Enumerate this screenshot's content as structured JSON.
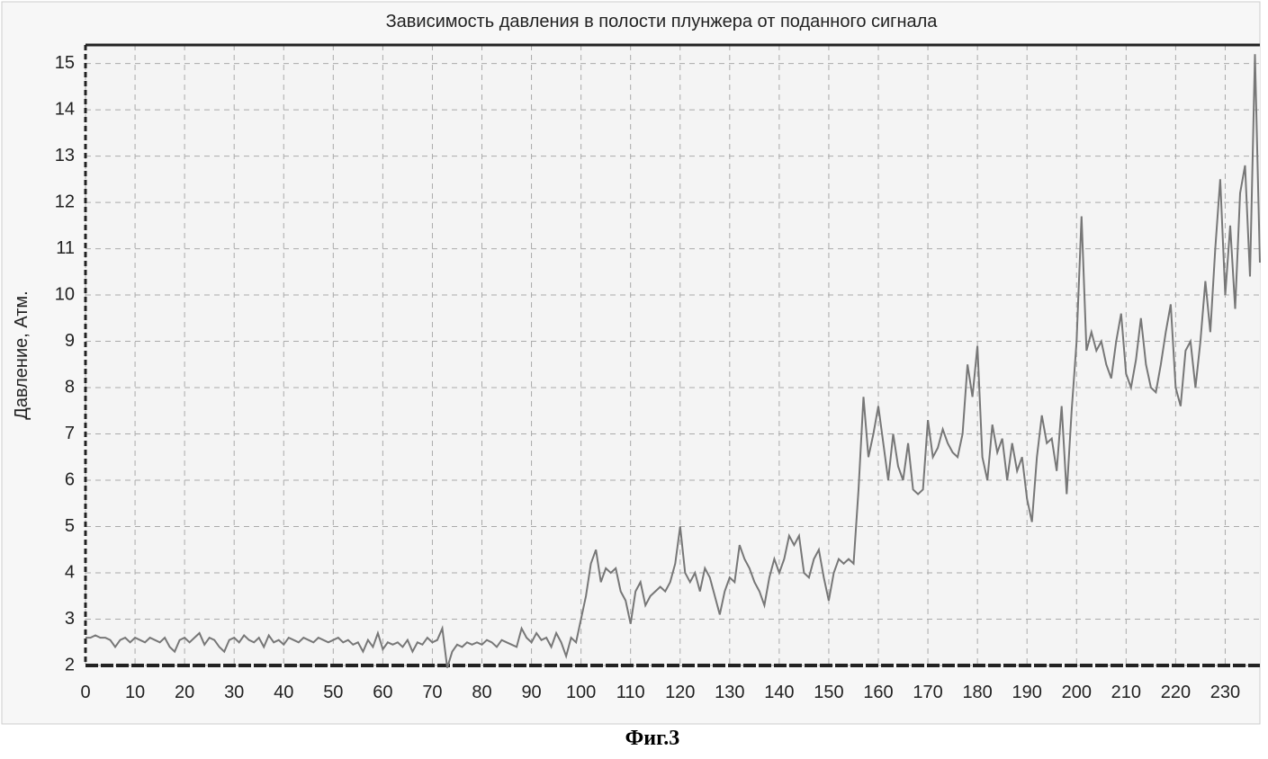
{
  "chart_data": {
    "type": "line",
    "title": "Зависимость давления в полости плунжера от поданного сигнала",
    "y_label": "Давление, Атм.",
    "caption": "Фиг.3",
    "x": [
      0,
      1,
      2,
      3,
      4,
      5,
      6,
      7,
      8,
      9,
      10,
      11,
      12,
      13,
      14,
      15,
      16,
      17,
      18,
      19,
      20,
      21,
      22,
      23,
      24,
      25,
      26,
      27,
      28,
      29,
      30,
      31,
      32,
      33,
      34,
      35,
      36,
      37,
      38,
      39,
      40,
      41,
      42,
      43,
      44,
      45,
      46,
      47,
      48,
      49,
      50,
      51,
      52,
      53,
      54,
      55,
      56,
      57,
      58,
      59,
      60,
      61,
      62,
      63,
      64,
      65,
      66,
      67,
      68,
      69,
      70,
      71,
      72,
      73,
      74,
      75,
      76,
      77,
      78,
      79,
      80,
      81,
      82,
      83,
      84,
      85,
      86,
      87,
      88,
      89,
      90,
      91,
      92,
      93,
      94,
      95,
      96,
      97,
      98,
      99,
      100,
      101,
      102,
      103,
      104,
      105,
      106,
      107,
      108,
      109,
      110,
      111,
      112,
      113,
      114,
      115,
      116,
      117,
      118,
      119,
      120,
      121,
      122,
      123,
      124,
      125,
      126,
      127,
      128,
      129,
      130,
      131,
      132,
      133,
      134,
      135,
      136,
      137,
      138,
      139,
      140,
      141,
      142,
      143,
      144,
      145,
      146,
      147,
      148,
      149,
      150,
      151,
      152,
      153,
      154,
      155,
      156,
      157,
      158,
      159,
      160,
      161,
      162,
      163,
      164,
      165,
      166,
      167,
      168,
      169,
      170,
      171,
      172,
      173,
      174,
      175,
      176,
      177,
      178,
      179,
      180,
      181,
      182,
      183,
      184,
      185,
      186,
      187,
      188,
      189,
      190,
      191,
      192,
      193,
      194,
      195,
      196,
      197,
      198,
      199,
      200,
      201,
      202,
      203,
      204,
      205,
      206,
      207,
      208,
      209,
      210,
      211,
      212,
      213,
      214,
      215,
      216,
      217,
      218,
      219,
      220,
      221,
      222,
      223,
      224,
      225,
      226,
      227,
      228,
      229,
      230,
      231,
      232,
      233,
      234,
      235,
      236,
      237
    ],
    "series": [
      {
        "color": "#777777",
        "values": [
          2.6,
          2.6,
          2.65,
          2.6,
          2.6,
          2.55,
          2.4,
          2.55,
          2.6,
          2.5,
          2.6,
          2.55,
          2.5,
          2.6,
          2.55,
          2.5,
          2.6,
          2.4,
          2.3,
          2.55,
          2.6,
          2.5,
          2.6,
          2.7,
          2.45,
          2.6,
          2.55,
          2.4,
          2.3,
          2.55,
          2.6,
          2.5,
          2.65,
          2.55,
          2.5,
          2.6,
          2.4,
          2.65,
          2.5,
          2.55,
          2.45,
          2.6,
          2.55,
          2.5,
          2.6,
          2.55,
          2.5,
          2.6,
          2.55,
          2.5,
          2.55,
          2.6,
          2.5,
          2.55,
          2.45,
          2.5,
          2.3,
          2.55,
          2.4,
          2.7,
          2.35,
          2.5,
          2.45,
          2.5,
          2.4,
          2.55,
          2.3,
          2.5,
          2.45,
          2.6,
          2.5,
          2.55,
          2.8,
          1.95,
          2.3,
          2.45,
          2.4,
          2.5,
          2.45,
          2.5,
          2.45,
          2.55,
          2.5,
          2.4,
          2.55,
          2.5,
          2.45,
          2.4,
          2.8,
          2.6,
          2.5,
          2.7,
          2.55,
          2.6,
          2.4,
          2.7,
          2.5,
          2.2,
          2.6,
          2.5,
          3.0,
          3.5,
          4.2,
          4.5,
          3.8,
          4.1,
          4.0,
          4.1,
          3.6,
          3.4,
          2.9,
          3.6,
          3.8,
          3.3,
          3.5,
          3.6,
          3.7,
          3.6,
          3.8,
          4.2,
          5.0,
          4.0,
          3.8,
          4.0,
          3.6,
          4.1,
          3.9,
          3.5,
          3.1,
          3.6,
          3.9,
          3.8,
          4.6,
          4.3,
          4.1,
          3.8,
          3.6,
          3.3,
          3.9,
          4.3,
          4.0,
          4.3,
          4.8,
          4.6,
          4.8,
          4.0,
          3.9,
          4.3,
          4.5,
          3.9,
          3.4,
          4.0,
          4.3,
          4.2,
          4.3,
          4.2,
          5.8,
          7.8,
          6.5,
          7.0,
          7.6,
          6.8,
          6.0,
          7.0,
          6.3,
          6.0,
          6.8,
          5.8,
          5.7,
          5.8,
          7.3,
          6.5,
          6.7,
          7.1,
          6.8,
          6.6,
          6.5,
          7.0,
          8.5,
          7.8,
          8.9,
          6.5,
          6.0,
          7.2,
          6.6,
          6.9,
          6.0,
          6.8,
          6.2,
          6.5,
          5.6,
          5.1,
          6.5,
          7.4,
          6.8,
          6.9,
          6.2,
          7.6,
          5.7,
          7.5,
          9.0,
          11.7,
          8.8,
          9.2,
          8.8,
          9.0,
          8.5,
          8.2,
          9.0,
          9.6,
          8.3,
          8.0,
          8.6,
          9.5,
          8.5,
          8.0,
          7.9,
          8.5,
          9.2,
          9.8,
          8.0,
          7.6,
          8.8,
          9.0,
          8.0,
          9.0,
          10.3,
          9.2,
          11.0,
          12.5,
          10.0,
          11.5,
          9.7,
          12.2,
          12.8,
          10.4,
          15.2,
          10.7
        ]
      }
    ],
    "xlim": [
      0,
      237
    ],
    "ylim": [
      2,
      15.4
    ],
    "xticks": [
      0,
      10,
      20,
      30,
      40,
      50,
      60,
      70,
      80,
      90,
      100,
      110,
      120,
      130,
      140,
      150,
      160,
      170,
      180,
      190,
      200,
      210,
      220,
      230
    ],
    "yticks": [
      2,
      3,
      4,
      5,
      6,
      7,
      8,
      9,
      10,
      11,
      12,
      13,
      14,
      15
    ],
    "grid": true
  }
}
